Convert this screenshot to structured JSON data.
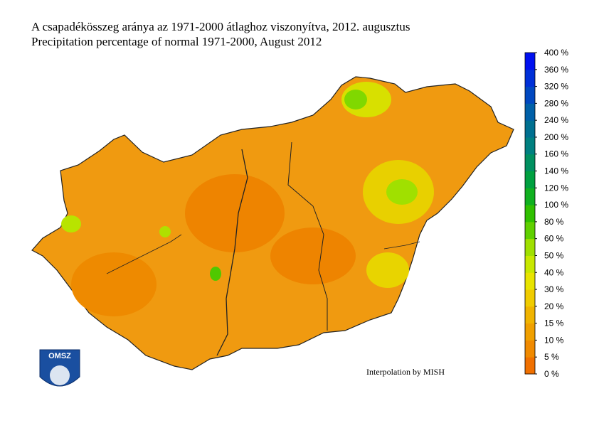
{
  "header": {
    "title_hu": "A csapadékösszeg aránya az 1971-2000 átlaghoz viszonyítva, 2012. augusztus",
    "title_en": "Precipitation percentage of normal 1971-2000, August 2012"
  },
  "legend": {
    "labels": [
      "0 %",
      "5 %",
      "10 %",
      "15 %",
      "20 %",
      "30 %",
      "40 %",
      "50 %",
      "60 %",
      "80 %",
      "100 %",
      "120 %",
      "140 %",
      "160 %",
      "200 %",
      "240 %",
      "280 %",
      "320 %",
      "360 %",
      "400 %"
    ],
    "colors": [
      "#f07000",
      "#f08a00",
      "#f0a000",
      "#f0b400",
      "#f0cc00",
      "#e8e400",
      "#c8e800",
      "#a0e000",
      "#60d000",
      "#30c000",
      "#10b020",
      "#00a040",
      "#009060",
      "#008080",
      "#007090",
      "#0060a8",
      "#0048c0",
      "#0030d8",
      "#0010f0"
    ]
  },
  "logo": {
    "text": "OMSZ"
  },
  "credit": "Interpolation by MISH"
}
